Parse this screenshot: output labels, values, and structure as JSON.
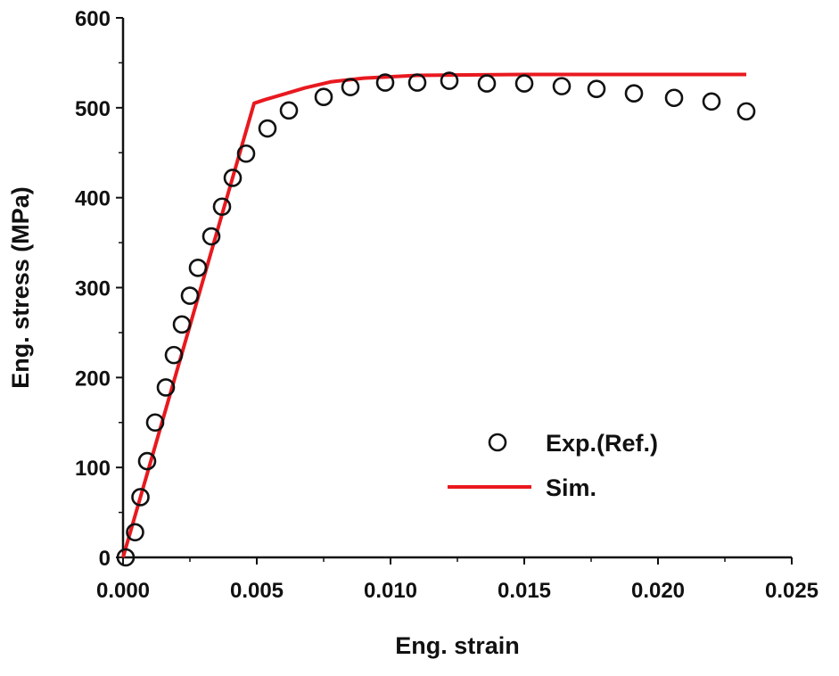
{
  "chart_data": {
    "type": "scatter",
    "title": "",
    "xlabel": "Eng. strain",
    "ylabel": "Eng. stress (MPa)",
    "xlim": [
      0.0,
      0.025
    ],
    "ylim": [
      0,
      600
    ],
    "grid": false,
    "legend_position": "lower-right",
    "x_ticks": [
      "0.000",
      "0.005",
      "0.010",
      "0.015",
      "0.020",
      "0.025"
    ],
    "y_ticks": [
      "0",
      "100",
      "200",
      "300",
      "400",
      "500",
      "600"
    ],
    "x_tick_values": [
      0.0,
      0.005,
      0.01,
      0.015,
      0.02,
      0.025
    ],
    "y_tick_values": [
      0,
      100,
      200,
      300,
      400,
      500,
      600
    ],
    "series": [
      {
        "name": "Exp.(Ref.)",
        "style": "open-circle",
        "color": "#111111",
        "x": [
          0.0001,
          0.00045,
          0.00065,
          0.0009,
          0.0012,
          0.0016,
          0.0019,
          0.0022,
          0.0025,
          0.0028,
          0.0033,
          0.0037,
          0.0041,
          0.0046,
          0.0054,
          0.0062,
          0.0075,
          0.0085,
          0.0098,
          0.011,
          0.0122,
          0.0136,
          0.015,
          0.0164,
          0.0177,
          0.0191,
          0.0206,
          0.022,
          0.0233
        ],
        "y": [
          0,
          28,
          67,
          107,
          150,
          189,
          225,
          259,
          291,
          322,
          357,
          390,
          422,
          449,
          477,
          497,
          512,
          523,
          528,
          528,
          530,
          527,
          527,
          524,
          521,
          516,
          511,
          507,
          496
        ]
      },
      {
        "name": "Sim.",
        "style": "line",
        "color": "#e8191f",
        "x": [
          0.0,
          0.0049,
          0.0053,
          0.006,
          0.0068,
          0.0078,
          0.009,
          0.011,
          0.015,
          0.02,
          0.0233
        ],
        "y": [
          0,
          505,
          509,
          515,
          522,
          529,
          533,
          536,
          537,
          537,
          537
        ]
      }
    ]
  }
}
